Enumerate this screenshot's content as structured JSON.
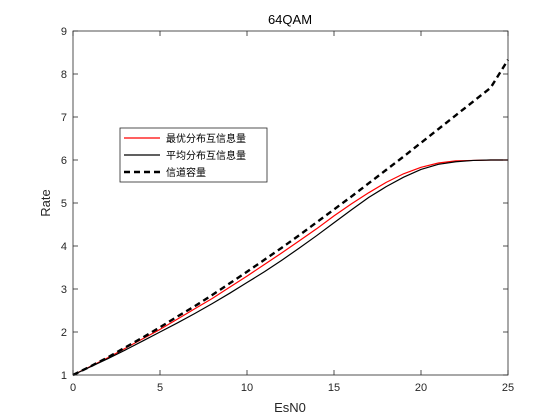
{
  "chart_data": {
    "type": "line",
    "title": "64QAM",
    "xlabel": "EsN0",
    "ylabel": "Rate",
    "xlim": [
      0,
      25
    ],
    "ylim": [
      1,
      9
    ],
    "xticks": [
      0,
      5,
      10,
      15,
      20,
      25
    ],
    "yticks": [
      1,
      2,
      3,
      4,
      5,
      6,
      7,
      8,
      9
    ],
    "grid": false,
    "legend_position": "upper-left",
    "series": [
      {
        "name": "最优分布互信息量",
        "color": "#ff0000",
        "style": "solid",
        "x": [
          0,
          1,
          2,
          3,
          4,
          5,
          6,
          7,
          8,
          9,
          10,
          11,
          12,
          13,
          14,
          15,
          16,
          17,
          18,
          19,
          20,
          21,
          22,
          23,
          24,
          25
        ],
        "y": [
          1.0,
          1.2,
          1.4,
          1.62,
          1.84,
          2.06,
          2.3,
          2.54,
          2.78,
          3.04,
          3.3,
          3.57,
          3.84,
          4.12,
          4.4,
          4.7,
          4.98,
          5.24,
          5.48,
          5.68,
          5.83,
          5.93,
          5.98,
          5.99,
          6.0,
          6.0
        ]
      },
      {
        "name": "平均分布互信息量",
        "color": "#000000",
        "style": "solid",
        "x": [
          0,
          1,
          2,
          3,
          4,
          5,
          6,
          7,
          8,
          9,
          10,
          11,
          12,
          13,
          14,
          15,
          16,
          17,
          18,
          19,
          20,
          21,
          22,
          23,
          24,
          25
        ],
        "y": [
          1.0,
          1.19,
          1.38,
          1.58,
          1.79,
          2.0,
          2.21,
          2.43,
          2.66,
          2.9,
          3.15,
          3.4,
          3.67,
          3.95,
          4.24,
          4.54,
          4.84,
          5.13,
          5.38,
          5.6,
          5.78,
          5.9,
          5.96,
          5.99,
          6.0,
          6.0
        ]
      },
      {
        "name": "信道容量",
        "color": "#000000",
        "style": "dashed",
        "x": [
          0,
          1,
          2,
          3,
          4,
          5,
          6,
          7,
          8,
          9,
          10,
          11,
          12,
          13,
          14,
          15,
          16,
          17,
          18,
          19,
          20,
          21,
          22,
          23,
          24,
          25
        ],
        "y": [
          1.0,
          1.2,
          1.41,
          1.64,
          1.87,
          2.11,
          2.36,
          2.6,
          2.86,
          3.13,
          3.4,
          3.68,
          3.96,
          4.25,
          4.55,
          4.85,
          5.15,
          5.46,
          5.77,
          6.08,
          6.4,
          6.72,
          7.04,
          7.36,
          7.68,
          8.33
        ]
      }
    ]
  }
}
